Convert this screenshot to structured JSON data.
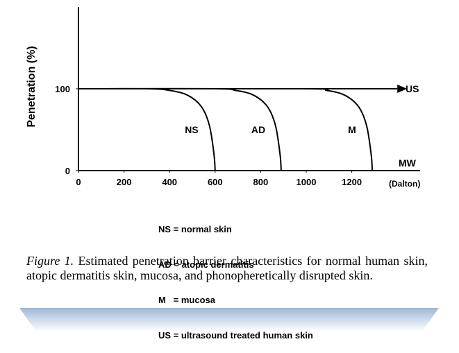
{
  "chart_data": {
    "type": "line",
    "y_label": "Penetration (%)",
    "x_label": "MW",
    "x_unit": "(Dalton)",
    "xlim": [
      0,
      1500
    ],
    "xticks": [
      0,
      200,
      400,
      600,
      800,
      1000,
      1200
    ],
    "ylim": [
      0,
      200
    ],
    "yticks": [
      0,
      100
    ],
    "color": "#000000",
    "series": [
      {
        "name": "NS",
        "x": [
          0,
          300,
          400,
          480,
          540,
          575,
          595,
          600
        ],
        "values": [
          100,
          100,
          98,
          92,
          78,
          55,
          20,
          0
        ]
      },
      {
        "name": "AD",
        "x": [
          0,
          590,
          690,
          770,
          830,
          865,
          885,
          890
        ],
        "values": [
          100,
          100,
          98,
          92,
          78,
          55,
          20,
          0
        ]
      },
      {
        "name": "M",
        "x": [
          0,
          990,
          1090,
          1170,
          1230,
          1265,
          1285,
          1290
        ],
        "values": [
          100,
          100,
          98,
          92,
          78,
          55,
          20,
          0
        ]
      },
      {
        "name": "US",
        "x": [
          0,
          1400
        ],
        "values": [
          100,
          100
        ]
      }
    ]
  },
  "legend_text": [
    "NS = normal skin",
    "AD = atopic dermatitis",
    "M   = mucosa",
    "US = ultrasound treated human skin"
  ],
  "caption": {
    "label": "Figure 1.",
    "text": "Estimated penetration barrier characteristics for normal human skin, atopic dermatitis skin, mucosa, and phonopheretically disrupted skin."
  }
}
